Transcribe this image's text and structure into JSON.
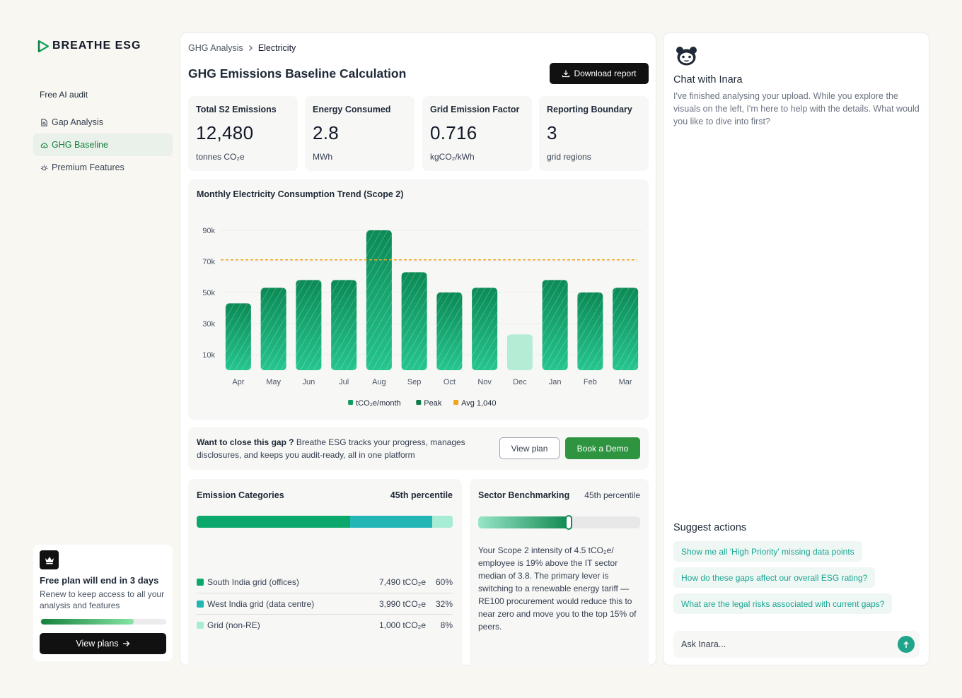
{
  "brand": {
    "name": "BREATHE ESG"
  },
  "sidebar": {
    "section_label": "Free AI audit",
    "items": [
      {
        "label": "Gap Analysis",
        "icon": "document-search-icon"
      },
      {
        "label": "GHG Baseline",
        "icon": "cloud-icon",
        "active": true
      },
      {
        "label": "Premium Features",
        "icon": "sparkle-icon"
      }
    ],
    "plan": {
      "title": "Free plan will end in 3 days",
      "description": "Renew to keep access to all your analysis and features",
      "progress": 0.75,
      "button_label": "View plans"
    }
  },
  "main": {
    "breadcrumb": [
      "GHG Analysis",
      "Electricity"
    ],
    "title": "GHG Emissions Baseline Calculation",
    "download_label": "Download report",
    "kpis": [
      {
        "label": "Total S2 Emissions",
        "value": "12,480",
        "unit": "tonnes CO₂e"
      },
      {
        "label": "Energy Consumed",
        "value": "2.8",
        "unit": "MWh"
      },
      {
        "label": "Grid Emission Factor",
        "value": "0.716",
        "unit": "kgCO₂/kWh"
      },
      {
        "label": "Reporting Boundary",
        "value": "3",
        "unit": "grid regions"
      }
    ],
    "gap_cta": {
      "lead": "Want to close this gap ?",
      "text": " Breathe ESG tracks your progress, manages disclosures, and keeps you audit-ready, all in one platform",
      "view_plan_label": "View plan",
      "demo_label": "Book a Demo"
    },
    "categories": {
      "title": "Emission Categories",
      "badge": "45th percentile",
      "rows": [
        {
          "name": "South India grid (offices)",
          "value": "7,490 tCO₂e",
          "pct": "60%",
          "share": 60,
          "color": "#0aa86b"
        },
        {
          "name": "West India grid (data centre)",
          "value": "3,990 tCO₂e",
          "pct": "32%",
          "share": 32,
          "color": "#22b6b5"
        },
        {
          "name": "Grid (non-RE)",
          "value": "1,000 tCO₂e",
          "pct": "8%",
          "share": 8,
          "color": "#a7ecd4"
        }
      ]
    },
    "benchmark": {
      "title": "Sector Benchmarking",
      "badge": "45th percentile",
      "level": 0.55,
      "text": "Your Scope 2 intensity of 4.5 tCO₂e/ employee is 19% above the IT sector median of 3.8. The primary lever is switching to a renewable energy tariff — RE100 procurement would reduce this to near zero and move you to the top 15% of peers."
    }
  },
  "chart_data": {
    "type": "bar",
    "title": "Monthly Electricity Consumption Trend (Scope 2)",
    "categories": [
      "Apr",
      "May",
      "Jun",
      "Jul",
      "Aug",
      "Sep",
      "Oct",
      "Nov",
      "Dec",
      "Jan",
      "Feb",
      "Mar"
    ],
    "values": [
      43000,
      53000,
      58000,
      58000,
      90000,
      63000,
      50000,
      53000,
      23000,
      58000,
      50000,
      53000
    ],
    "peak_index": 4,
    "low_index": 8,
    "reference_line": 71000,
    "y_ticks": [
      {
        "value": 10000,
        "label": "10k"
      },
      {
        "value": 30000,
        "label": "30k"
      },
      {
        "value": 50000,
        "label": "50k"
      },
      {
        "value": 70000,
        "label": "70k"
      },
      {
        "value": 90000,
        "label": "90k"
      }
    ],
    "ylim": [
      0,
      100000
    ],
    "legend": [
      {
        "label": "tCO₂e/month",
        "color": "#109a5f"
      },
      {
        "label": "Peak",
        "color": "#0f7a4c"
      },
      {
        "label": "Avg 1,040",
        "color": "#f0a31d"
      }
    ],
    "legend_position": "bottom",
    "grid": true,
    "colors": {
      "bar_top": "#0b8a55",
      "bar_bottom": "#25c58f",
      "low_bar": "#b4ecd6",
      "avg_line": "#f0a31d"
    }
  },
  "chat": {
    "title": "Chat with Inara",
    "message": "I've finished analysing your upload. While you explore the visuals on the left, I'm here to help with the details. What would you like to dive into first?",
    "suggest_title": "Suggest actions",
    "suggestions": [
      "Show me all 'High Priority' missing data points",
      "How do these gaps affect our overall ESG rating?",
      "What are the legal risks associated with current gaps?"
    ],
    "input_placeholder": "Ask Inara..."
  }
}
